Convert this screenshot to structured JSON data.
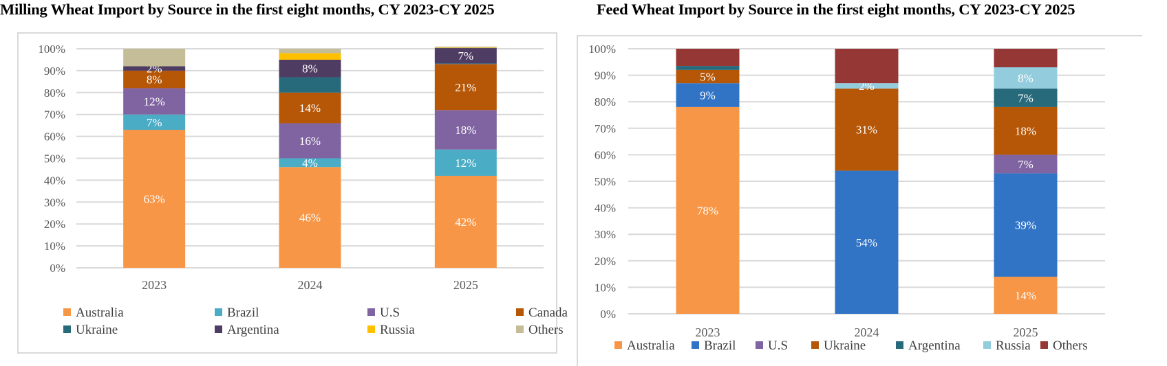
{
  "titles": {
    "left": "Milling Wheat Import by Source in the first eight months, CY 2023-CY 2025",
    "right": "Feed Wheat Import by Source in the first eight months, CY 2023-CY 2025"
  },
  "chart_data": [
    {
      "type": "bar",
      "stacked": true,
      "percent_stacked": true,
      "title": "Milling Wheat Import by Source in the first eight months, CY 2023-CY 2025",
      "categories": [
        "2023",
        "2024",
        "2025"
      ],
      "xlabel": "",
      "ylabel": "",
      "ylim": [
        0,
        100
      ],
      "yticks": [
        "0%",
        "10%",
        "20%",
        "30%",
        "40%",
        "50%",
        "60%",
        "70%",
        "80%",
        "90%",
        "100%"
      ],
      "grid": true,
      "legend_position": "bottom",
      "series": [
        {
          "name": "Australia",
          "color": "#F79646",
          "values": [
            63,
            46,
            42
          ],
          "labels": [
            "63%",
            "46%",
            "42%"
          ]
        },
        {
          "name": "Brazil",
          "color": "#4BACC6",
          "values": [
            7,
            4,
            12
          ],
          "labels": [
            "7%",
            "4%",
            "12%"
          ]
        },
        {
          "name": "U.S",
          "color": "#8064A2",
          "values": [
            12,
            16,
            18
          ],
          "labels": [
            "12%",
            "16%",
            "18%"
          ]
        },
        {
          "name": "Canada",
          "color": "#B65708",
          "values": [
            8,
            14,
            21
          ],
          "labels": [
            "8%",
            "14%",
            "21%"
          ]
        },
        {
          "name": "Ukraine",
          "color": "#276A7C",
          "values": [
            0,
            7,
            0.3
          ],
          "labels": [
            "",
            "",
            ""
          ]
        },
        {
          "name": "Argentina",
          "color": "#4F3C63",
          "values": [
            2,
            8,
            7
          ],
          "labels": [
            "2%",
            "8%",
            "7%"
          ]
        },
        {
          "name": "Russia",
          "color": "#FFC000",
          "values": [
            0,
            3,
            0.2
          ],
          "labels": [
            "",
            "",
            ""
          ]
        },
        {
          "name": "Others",
          "color": "#C4BD97",
          "values": [
            8,
            2,
            0.5
          ],
          "labels": [
            "",
            "",
            ""
          ]
        }
      ]
    },
    {
      "type": "bar",
      "stacked": true,
      "percent_stacked": true,
      "title": "Feed Wheat Import by Source in the first eight months, CY 2023-CY 2025",
      "categories": [
        "2023",
        "2024",
        "2025"
      ],
      "xlabel": "",
      "ylabel": "",
      "ylim": [
        0,
        100
      ],
      "yticks": [
        "0%",
        "10%",
        "20%",
        "30%",
        "40%",
        "50%",
        "60%",
        "70%",
        "80%",
        "90%",
        "100%"
      ],
      "grid": true,
      "legend_position": "bottom",
      "series": [
        {
          "name": "Australia",
          "color": "#F79646",
          "values": [
            78,
            0,
            14
          ],
          "labels": [
            "78%",
            "",
            "14%"
          ]
        },
        {
          "name": "Brazil",
          "color": "#3174C6",
          "values": [
            9,
            54,
            39
          ],
          "labels": [
            "9%",
            "54%",
            "39%"
          ]
        },
        {
          "name": "U.S",
          "color": "#8064A2",
          "values": [
            0,
            0,
            7
          ],
          "labels": [
            "",
            "",
            "7%"
          ]
        },
        {
          "name": "Ukraine",
          "color": "#B65708",
          "values": [
            5,
            31,
            18
          ],
          "labels": [
            "5%",
            "31%",
            "18%"
          ]
        },
        {
          "name": "Argentina",
          "color": "#276A7C",
          "values": [
            1.5,
            0,
            7
          ],
          "labels": [
            "",
            "",
            "7%"
          ]
        },
        {
          "name": "Russia",
          "color": "#93CDDD",
          "values": [
            0,
            2,
            8
          ],
          "labels": [
            "",
            "2%",
            "8%"
          ]
        },
        {
          "name": "Others",
          "color": "#953735",
          "values": [
            6.5,
            13,
            7
          ],
          "labels": [
            "",
            "",
            ""
          ]
        }
      ]
    }
  ]
}
